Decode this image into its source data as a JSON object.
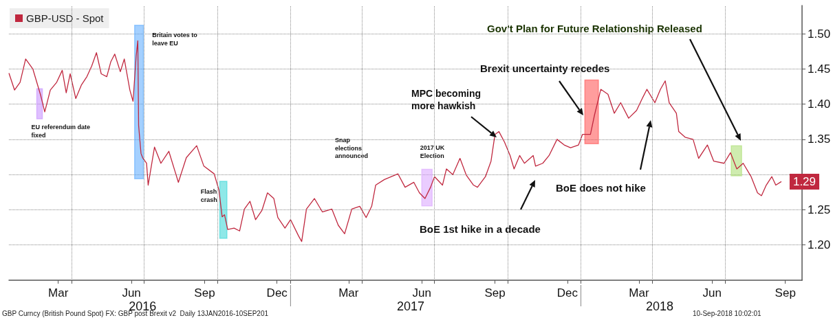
{
  "chart_data": {
    "type": "line",
    "legend": "top left",
    "grid": true,
    "xlim": [
      "2016-01-13",
      "2018-10-06"
    ],
    "xticks": [
      {
        "value": "2016-03-15",
        "label": "Mar"
      },
      {
        "value": "2016-06-15",
        "label": "Jun"
      },
      {
        "value": "2016-09-15",
        "label": "Sep"
      },
      {
        "value": "2016-12-15",
        "label": "Dec"
      },
      {
        "value": "2017-03-15",
        "label": "Mar"
      },
      {
        "value": "2017-06-15",
        "label": "Jun"
      },
      {
        "value": "2017-09-15",
        "label": "Sep"
      },
      {
        "value": "2017-12-15",
        "label": "Dec"
      },
      {
        "value": "2018-03-15",
        "label": "Mar"
      },
      {
        "value": "2018-06-15",
        "label": "Jun"
      },
      {
        "value": "2018-09-15",
        "label": "Sep"
      },
      {
        "value": "2016-04-01",
        "label": null
      },
      {
        "value": "2016-07-01",
        "label": null
      },
      {
        "value": "2016-10-01",
        "label": null
      },
      {
        "value": "2017-01-01",
        "label": null
      },
      {
        "value": "2017-04-01",
        "label": null
      },
      {
        "value": "2017-07-01",
        "label": null
      },
      {
        "value": "2017-10-01",
        "label": null
      },
      {
        "value": "2018-01-01",
        "label": null
      },
      {
        "value": "2018-04-01",
        "label": null
      },
      {
        "value": "2018-07-01",
        "label": null
      }
    ],
    "x2lim": [
      "2016-01-13",
      "2018-10-06"
    ],
    "x2ticks": [
      {
        "value": "2016-06-29",
        "label": "2016"
      },
      {
        "value": "2017-06-01",
        "label": "2017"
      },
      {
        "value": "2018-04-10",
        "label": "2018"
      },
      {
        "value": "2017-01-01",
        "label": null
      },
      {
        "value": "2018-01-01",
        "label": null
      }
    ],
    "ylim": [
      1.15,
      1.54
    ],
    "yticks": [
      {
        "value": 1.2,
        "label": "1.20"
      },
      {
        "value": 1.25,
        "label": "1.25"
      },
      {
        "value": 1.3,
        "label": null
      },
      {
        "value": 1.35,
        "label": "1.35"
      },
      {
        "value": 1.4,
        "label": "1.40"
      },
      {
        "value": 1.45,
        "label": "1.45"
      },
      {
        "value": 1.5,
        "label": "1.50"
      }
    ],
    "series": [
      {
        "name": "GBP-USD - Spot",
        "color": "#c0283f",
        "x": [
          "2016-01-13",
          "2016-01-20",
          "2016-01-27",
          "2016-02-03",
          "2016-02-12",
          "2016-02-22",
          "2016-02-27",
          "2016-03-05",
          "2016-03-13",
          "2016-03-20",
          "2016-03-25",
          "2016-03-30",
          "2016-04-06",
          "2016-04-13",
          "2016-04-20",
          "2016-04-26",
          "2016-05-02",
          "2016-05-08",
          "2016-05-15",
          "2016-05-20",
          "2016-05-25",
          "2016-06-01",
          "2016-06-06",
          "2016-06-13",
          "2016-06-17",
          "2016-06-21",
          "2016-06-23",
          "2016-06-24",
          "2016-06-27",
          "2016-06-29",
          "2016-07-04",
          "2016-07-06",
          "2016-07-14",
          "2016-07-22",
          "2016-08-01",
          "2016-08-13",
          "2016-08-23",
          "2016-09-05",
          "2016-09-14",
          "2016-09-27",
          "2016-10-03",
          "2016-10-07",
          "2016-10-10",
          "2016-10-14",
          "2016-10-22",
          "2016-10-29",
          "2016-11-04",
          "2016-11-11",
          "2016-11-18",
          "2016-11-26",
          "2016-12-03",
          "2016-12-11",
          "2016-12-16",
          "2016-12-25",
          "2017-01-01",
          "2017-01-11",
          "2017-01-15",
          "2017-01-21",
          "2017-01-31",
          "2017-02-10",
          "2017-02-22",
          "2017-03-02",
          "2017-03-10",
          "2017-03-19",
          "2017-03-29",
          "2017-04-06",
          "2017-04-13",
          "2017-04-18",
          "2017-04-29",
          "2017-05-16",
          "2017-05-25",
          "2017-06-05",
          "2017-06-12",
          "2017-06-19",
          "2017-06-26",
          "2017-07-01",
          "2017-07-11",
          "2017-07-16",
          "2017-07-24",
          "2017-08-02",
          "2017-08-10",
          "2017-08-19",
          "2017-08-24",
          "2017-09-03",
          "2017-09-10",
          "2017-09-15",
          "2017-09-20",
          "2017-09-27",
          "2017-10-04",
          "2017-10-09",
          "2017-10-16",
          "2017-10-22",
          "2017-11-02",
          "2017-11-05",
          "2017-11-14",
          "2017-11-22",
          "2017-12-02",
          "2017-12-11",
          "2017-12-19",
          "2017-12-29",
          "2018-01-03",
          "2018-01-13",
          "2018-01-18",
          "2018-01-26",
          "2018-02-04",
          "2018-02-12",
          "2018-02-20",
          "2018-03-02",
          "2018-03-12",
          "2018-03-20",
          "2018-03-25",
          "2018-04-04",
          "2018-04-11",
          "2018-04-17",
          "2018-04-22",
          "2018-05-01",
          "2018-05-04",
          "2018-05-12",
          "2018-05-22",
          "2018-05-29",
          "2018-06-09",
          "2018-06-17",
          "2018-06-30",
          "2018-07-08",
          "2018-07-16",
          "2018-07-24",
          "2018-08-03",
          "2018-08-11",
          "2018-08-16",
          "2018-08-22",
          "2018-08-29",
          "2018-09-03",
          "2018-09-10"
        ],
        "values": [
          1.444,
          1.42,
          1.431,
          1.464,
          1.45,
          1.412,
          1.389,
          1.42,
          1.431,
          1.448,
          1.416,
          1.443,
          1.408,
          1.427,
          1.439,
          1.454,
          1.473,
          1.443,
          1.439,
          1.46,
          1.471,
          1.446,
          1.464,
          1.42,
          1.404,
          1.469,
          1.49,
          1.37,
          1.33,
          1.324,
          1.316,
          1.285,
          1.339,
          1.316,
          1.333,
          1.289,
          1.324,
          1.341,
          1.312,
          1.301,
          1.278,
          1.24,
          1.243,
          1.222,
          1.224,
          1.22,
          1.251,
          1.262,
          1.236,
          1.249,
          1.274,
          1.266,
          1.239,
          1.224,
          1.236,
          1.213,
          1.205,
          1.251,
          1.266,
          1.247,
          1.251,
          1.228,
          1.216,
          1.251,
          1.255,
          1.239,
          1.255,
          1.285,
          1.293,
          1.301,
          1.282,
          1.289,
          1.274,
          1.266,
          1.282,
          1.297,
          1.285,
          1.308,
          1.3,
          1.323,
          1.299,
          1.285,
          1.282,
          1.297,
          1.319,
          1.357,
          1.361,
          1.346,
          1.327,
          1.308,
          1.327,
          1.316,
          1.327,
          1.312,
          1.316,
          1.327,
          1.35,
          1.342,
          1.338,
          1.342,
          1.357,
          1.357,
          1.384,
          1.421,
          1.414,
          1.387,
          1.402,
          1.38,
          1.391,
          1.41,
          1.421,
          1.402,
          1.421,
          1.433,
          1.402,
          1.387,
          1.361,
          1.353,
          1.35,
          1.323,
          1.342,
          1.319,
          1.316,
          1.331,
          1.308,
          1.316,
          1.297,
          1.274,
          1.27,
          1.285,
          1.297,
          1.285,
          1.29
        ],
        "value_labels": [
          null,
          null,
          null,
          null,
          null,
          null,
          null,
          null,
          null,
          null,
          null,
          null,
          null,
          null,
          null,
          null,
          null,
          null,
          null,
          null,
          null,
          null,
          null,
          null,
          null,
          null,
          null,
          null,
          null,
          null,
          null,
          null,
          null,
          null,
          null,
          null,
          null,
          null,
          null,
          null,
          null,
          null,
          null,
          null,
          null,
          null,
          null,
          null,
          null,
          null,
          null,
          null,
          null,
          null,
          null,
          null,
          null,
          null,
          null,
          null,
          null,
          null,
          null,
          null,
          null,
          null,
          null,
          null,
          null,
          null,
          null,
          null,
          null,
          null,
          null,
          null,
          null,
          null,
          null,
          null,
          null,
          null,
          null,
          null,
          null,
          null,
          null,
          null,
          null,
          null,
          null,
          null,
          null,
          null,
          null,
          null,
          null,
          null,
          null,
          null,
          null,
          null,
          null,
          null,
          null,
          null,
          null,
          null,
          null,
          null,
          null,
          null,
          null,
          null,
          null,
          null,
          null,
          null,
          null,
          null,
          null,
          null,
          null,
          null,
          null,
          null,
          null,
          null,
          null,
          null,
          null,
          null,
          "1.29"
        ]
      }
    ],
    "bands": [
      {
        "axis": "x",
        "from": "2016-02-17",
        "to": "2016-02-24",
        "label": "EU referendum date fixed",
        "color": "#c58cff"
      },
      {
        "axis": "x",
        "from": "2016-06-19",
        "to": "2016-06-30",
        "label": "Britain votes to leave EU",
        "color": "#5aa9ff"
      },
      {
        "axis": "x",
        "from": "2016-10-04",
        "to": "2016-10-13",
        "label": "Flash crash",
        "color": "#33d6d6"
      },
      {
        "axis": "x",
        "from": "2017-06-15",
        "to": "2017-06-28",
        "label": "2017 UK Election",
        "color": "#d9a3ff"
      },
      {
        "axis": "x",
        "from": "2018-01-06",
        "to": "2018-01-23",
        "color": "#ff4d4d"
      },
      {
        "axis": "x",
        "from": "2018-07-09",
        "to": "2018-07-22",
        "color": "#a8dc6e"
      }
    ],
    "annotations": [
      "MPC becoming more hawkish",
      "Brexit uncertainty recedes",
      "BoE 1st hike in a decade",
      "BoE does not hike",
      "Gov't Plan for Future Relationship Released",
      "Snap elections announced",
      "GBP Curncy (British Pound Spot) FX: GBP post Brexit v2  Daily 13JAN2016-10SEP201",
      "10-Sep-2018 10:02:01"
    ]
  }
}
